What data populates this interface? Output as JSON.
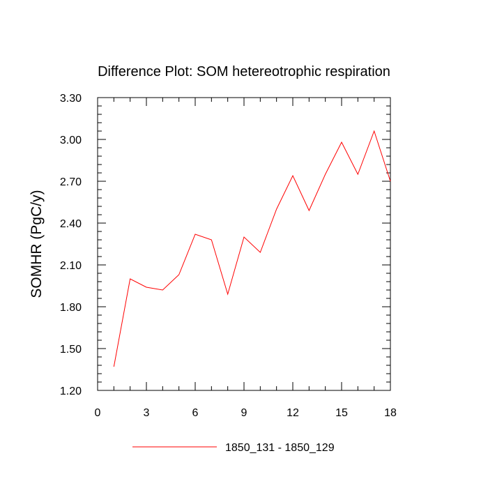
{
  "chart_data": {
    "type": "line",
    "title": "Difference Plot: SOM hetereotrophic respiration",
    "xlabel": "",
    "ylabel": "SOMHR  (PgC/y)",
    "xlim": [
      0,
      18
    ],
    "ylim": [
      1.2,
      3.3
    ],
    "x_ticks": [
      0,
      3,
      6,
      9,
      12,
      15,
      18
    ],
    "x_tick_labels": [
      "0",
      "3",
      "6",
      "9",
      "12",
      "15",
      "18"
    ],
    "y_ticks": [
      1.2,
      1.5,
      1.8,
      2.1,
      2.4,
      2.7,
      3.0,
      3.3
    ],
    "y_tick_labels": [
      "1.20",
      "1.50",
      "1.80",
      "2.10",
      "2.40",
      "2.70",
      "3.00",
      "3.30"
    ],
    "grid": false,
    "legend_position": "bottom-center",
    "series": [
      {
        "name": "1850_131 - 1850_129",
        "color": "#ff0000",
        "x": [
          1,
          2,
          3,
          4,
          5,
          6,
          7,
          8,
          9,
          10,
          11,
          12,
          13,
          14,
          15,
          16,
          17,
          18
        ],
        "values": [
          1.37,
          2.0,
          1.94,
          1.92,
          2.03,
          2.32,
          2.28,
          1.89,
          2.3,
          2.19,
          2.5,
          2.74,
          2.49,
          2.75,
          2.98,
          2.75,
          3.06,
          2.7
        ]
      }
    ]
  }
}
